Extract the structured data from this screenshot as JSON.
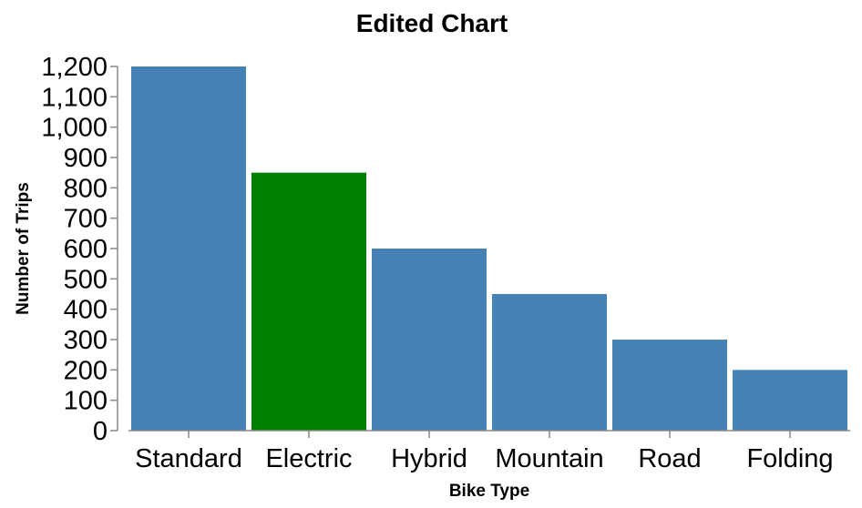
{
  "chart_data": {
    "type": "bar",
    "title": "Edited Chart",
    "xlabel": "Bike Type",
    "ylabel": "Number of Trips",
    "categories": [
      "Standard",
      "Electric",
      "Hybrid",
      "Mountain",
      "Road",
      "Folding"
    ],
    "values": [
      1200,
      850,
      600,
      450,
      300,
      200
    ],
    "colors": [
      "#4682b4",
      "#008000",
      "#4682b4",
      "#4682b4",
      "#4682b4",
      "#4682b4"
    ],
    "ylim": [
      0,
      1200
    ],
    "yticks": [
      "0",
      "100",
      "200",
      "300",
      "400",
      "500",
      "600",
      "700",
      "800",
      "900",
      "1,000",
      "1,100",
      "1,200"
    ],
    "grid": false,
    "legend": "none"
  }
}
